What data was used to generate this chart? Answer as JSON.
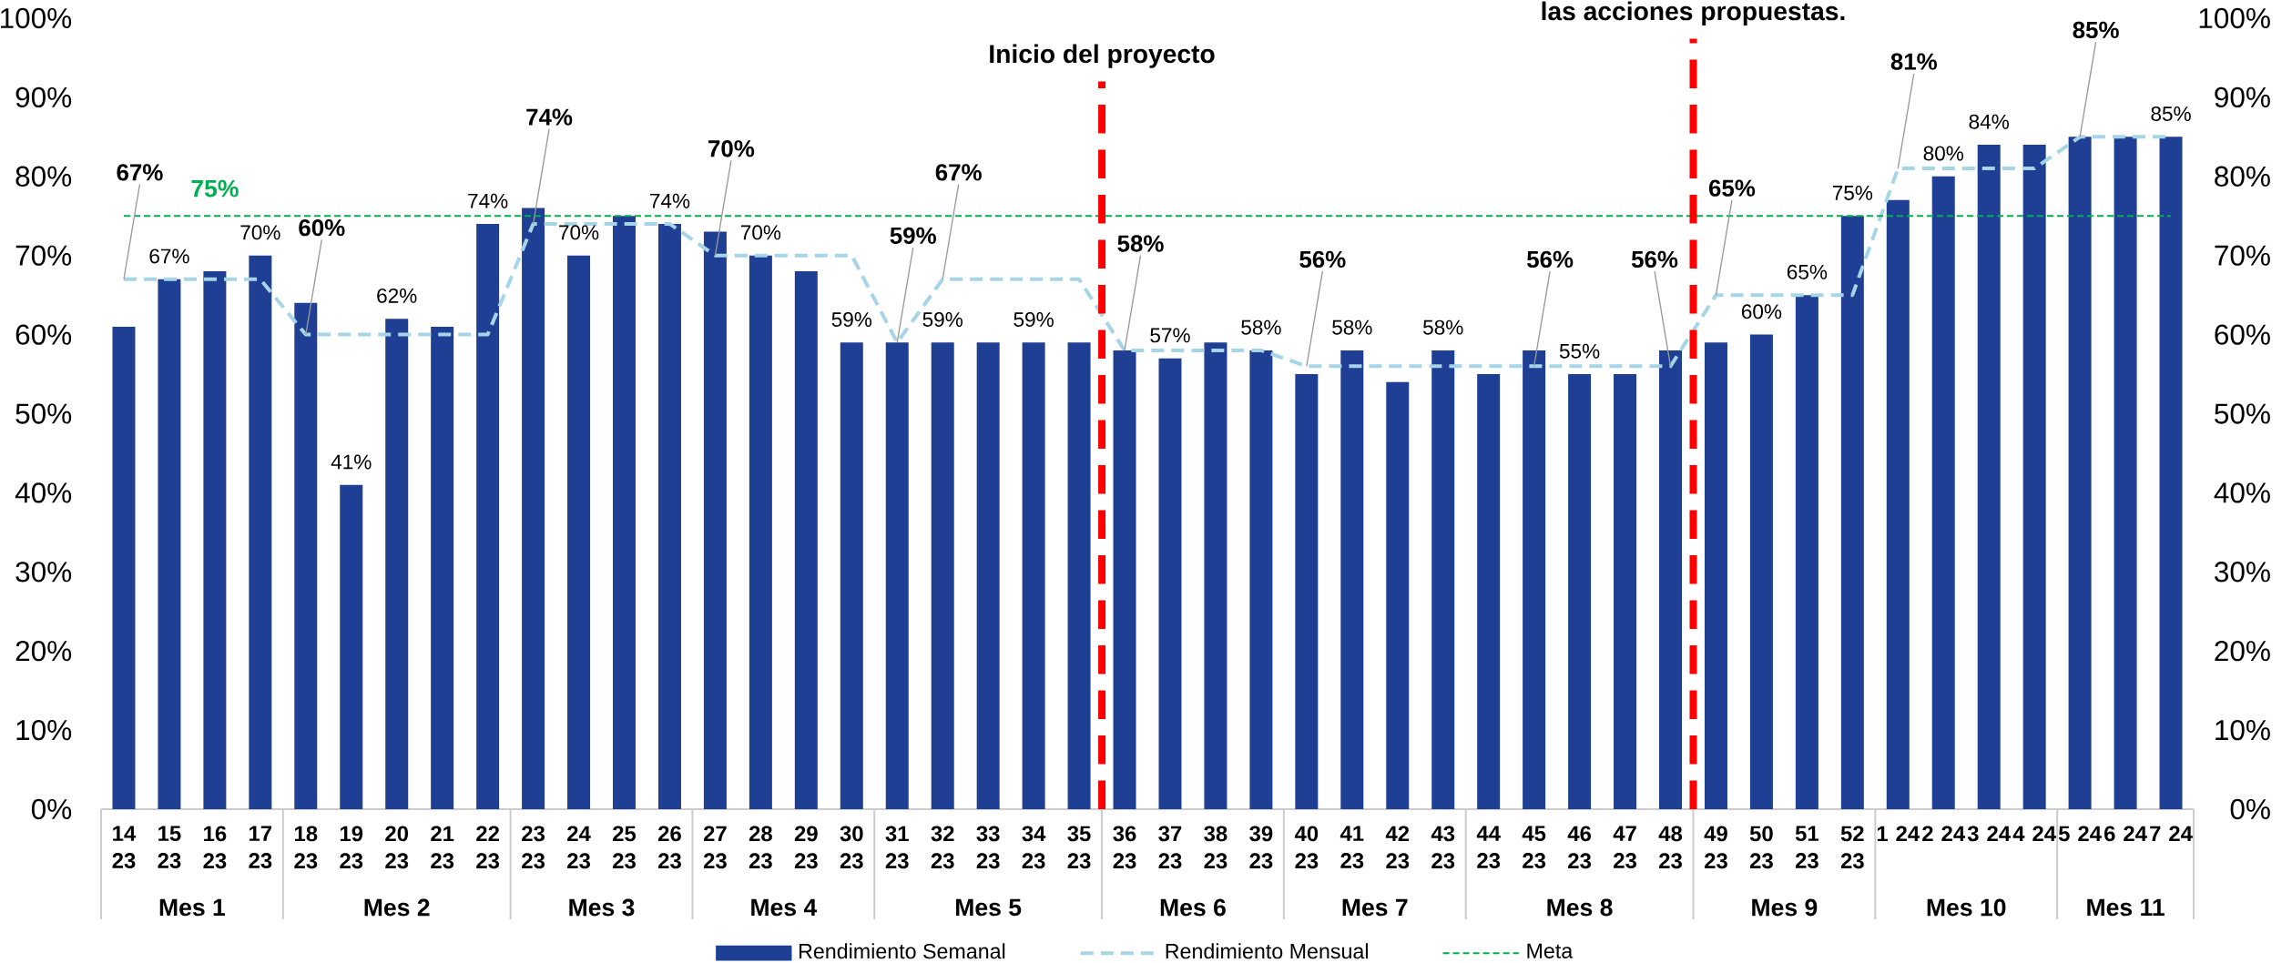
{
  "chart_data": {
    "type": "bar",
    "categories": [
      "14 23",
      "15 23",
      "16 23",
      "17 23",
      "18 23",
      "19 23",
      "20 23",
      "21 23",
      "22 23",
      "23 23",
      "24 23",
      "25 23",
      "26 23",
      "27 23",
      "28 23",
      "29 23",
      "30 23",
      "31 23",
      "32 23",
      "33 23",
      "34 23",
      "35 23",
      "36 23",
      "37 23",
      "38 23",
      "39 23",
      "40 23",
      "41 23",
      "42 23",
      "43 23",
      "44 23",
      "45 23",
      "46 23",
      "47 23",
      "48 23",
      "49 23",
      "50 23",
      "51 23",
      "52 23",
      "1 24",
      "2 24",
      "3 24",
      "4 24",
      "5 24",
      "6 24",
      "7 24"
    ],
    "series": [
      {
        "name": "Rendimiento Semanal",
        "color": "#1f3f95",
        "values": [
          61,
          67,
          68,
          70,
          64,
          41,
          62,
          61,
          74,
          76,
          70,
          75,
          74,
          73,
          70,
          68,
          59,
          59,
          59,
          59,
          59,
          59,
          58,
          57,
          59,
          58,
          55,
          58,
          54,
          58,
          55,
          58,
          55,
          55,
          58,
          59,
          60,
          65,
          75,
          77,
          80,
          84,
          84,
          85,
          85,
          85
        ],
        "value_labels": [
          null,
          "67%",
          null,
          "70%",
          null,
          "41%",
          "62%",
          null,
          "74%",
          null,
          "70%",
          null,
          "74%",
          null,
          "70%",
          null,
          "59%",
          null,
          "59%",
          null,
          "59%",
          null,
          null,
          "57%",
          null,
          "58%",
          null,
          "58%",
          null,
          "58%",
          null,
          null,
          "55%",
          null,
          null,
          null,
          "60%",
          "65%",
          "75%",
          null,
          "80%",
          "84%",
          null,
          null,
          null,
          "85%"
        ]
      },
      {
        "name": "Rendimiento Mensual",
        "type": "line",
        "color": "#a6d5e8",
        "line_style": "dashed",
        "values": [
          67,
          67,
          67,
          67,
          60,
          60,
          60,
          60,
          60,
          74,
          74,
          74,
          74,
          70,
          70,
          70,
          70,
          59,
          67,
          67,
          67,
          67,
          58,
          58,
          58,
          58,
          56,
          56,
          56,
          56,
          56,
          56,
          56,
          56,
          56,
          65,
          65,
          65,
          65,
          81,
          81,
          81,
          81,
          85,
          85,
          85
        ],
        "value_labels": [
          "67%",
          null,
          null,
          null,
          "60%",
          null,
          null,
          null,
          null,
          "74%",
          null,
          null,
          null,
          "70%",
          null,
          null,
          null,
          "59%",
          "67%",
          null,
          null,
          null,
          "58%",
          null,
          null,
          null,
          "56%",
          null,
          null,
          null,
          null,
          "56%",
          null,
          null,
          "56%",
          "65%",
          null,
          null,
          null,
          "81%",
          null,
          null,
          null,
          "85%",
          null,
          null
        ]
      },
      {
        "name": "Meta",
        "type": "line",
        "color": "#00b050",
        "line_style": "dashed",
        "values": [
          75,
          75,
          75,
          75,
          75,
          75,
          75,
          75,
          75,
          75,
          75,
          75,
          75,
          75,
          75,
          75,
          75,
          75,
          75,
          75,
          75,
          75,
          75,
          75,
          75,
          75,
          75,
          75,
          75,
          75,
          75,
          75,
          75,
          75,
          75,
          75,
          75,
          75,
          75,
          75,
          75,
          75,
          75,
          75,
          75,
          75
        ],
        "value_labels": [
          null,
          null,
          "75%",
          null,
          null,
          null,
          null,
          null,
          null,
          null,
          null,
          null,
          null,
          null,
          null,
          null,
          null,
          null,
          null,
          null,
          null,
          null,
          null,
          null,
          null,
          null,
          null,
          null,
          null,
          null,
          null,
          null,
          null,
          null,
          null,
          null,
          null,
          null,
          null,
          null,
          null,
          null,
          null,
          null,
          null,
          null
        ]
      }
    ],
    "ylim": [
      0,
      100
    ],
    "yticks": [
      {
        "value": 0,
        "label": "0%"
      },
      {
        "value": 10,
        "label": "10%"
      },
      {
        "value": 20,
        "label": "20%"
      },
      {
        "value": 30,
        "label": "30%"
      },
      {
        "value": 40,
        "label": "40%"
      },
      {
        "value": 50,
        "label": "50%"
      },
      {
        "value": 60,
        "label": "60%"
      },
      {
        "value": 70,
        "label": "70%"
      },
      {
        "value": 80,
        "label": "80%"
      },
      {
        "value": 90,
        "label": "90%"
      },
      {
        "value": 100,
        "label": "100%"
      }
    ],
    "y2lim": [
      0,
      100
    ],
    "y2ticks": [
      {
        "value": 0,
        "label": "0%"
      },
      {
        "value": 10,
        "label": "10%"
      },
      {
        "value": 20,
        "label": "20%"
      },
      {
        "value": 30,
        "label": "30%"
      },
      {
        "value": 40,
        "label": "40%"
      },
      {
        "value": 50,
        "label": "50%"
      },
      {
        "value": 60,
        "label": "60%"
      },
      {
        "value": 70,
        "label": "70%"
      },
      {
        "value": 80,
        "label": "80%"
      },
      {
        "value": 90,
        "label": "90%"
      },
      {
        "value": 100,
        "label": "100%"
      }
    ],
    "annotations": [
      "Inicio del proyecto",
      "las acciones propuestas.",
      "Mes 1",
      "Mes 2",
      "Mes 3",
      "Mes 4",
      "Mes 5",
      "Mes 6",
      "Mes 7",
      "Mes 8",
      "Mes 9",
      "Mes 10",
      "Mes 11"
    ],
    "legend": "bottom"
  }
}
